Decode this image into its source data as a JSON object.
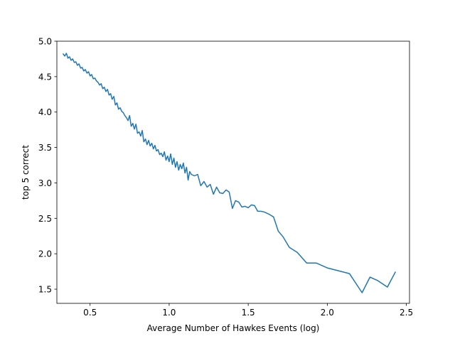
{
  "chart_data": {
    "type": "line",
    "title": "",
    "xlabel": "Average Number of Hawkes Events (log)",
    "ylabel": "top 5 correct",
    "xlim": [
      0.29,
      2.52
    ],
    "ylim": [
      1.3,
      5.0
    ],
    "x_ticks": [
      0.5,
      1.0,
      1.5,
      2.0,
      2.5
    ],
    "x_tick_labels": [
      "0.5",
      "1.0",
      "1.5",
      "2.0",
      "2.5"
    ],
    "y_ticks": [
      1.5,
      2.0,
      2.5,
      3.0,
      3.5,
      4.0,
      4.5,
      5.0
    ],
    "y_tick_labels": [
      "1.5",
      "2.0",
      "2.5",
      "3.0",
      "3.5",
      "4.0",
      "4.5",
      "5.0"
    ],
    "grid": false,
    "legend": "none",
    "series": [
      {
        "color": "#1f77b4",
        "x": [
          0.33,
          0.34,
          0.35,
          0.36,
          0.37,
          0.38,
          0.39,
          0.4,
          0.41,
          0.42,
          0.43,
          0.44,
          0.45,
          0.46,
          0.47,
          0.48,
          0.49,
          0.5,
          0.51,
          0.52,
          0.53,
          0.54,
          0.55,
          0.56,
          0.57,
          0.58,
          0.59,
          0.6,
          0.61,
          0.62,
          0.63,
          0.64,
          0.65,
          0.66,
          0.67,
          0.68,
          0.69,
          0.7,
          0.71,
          0.72,
          0.73,
          0.74,
          0.75,
          0.76,
          0.77,
          0.78,
          0.79,
          0.8,
          0.81,
          0.82,
          0.83,
          0.84,
          0.85,
          0.86,
          0.87,
          0.88,
          0.89,
          0.9,
          0.91,
          0.92,
          0.93,
          0.94,
          0.95,
          0.96,
          0.97,
          0.98,
          0.99,
          1.0,
          1.01,
          1.02,
          1.03,
          1.04,
          1.05,
          1.06,
          1.07,
          1.08,
          1.09,
          1.1,
          1.11,
          1.12,
          1.13,
          1.14,
          1.16,
          1.18,
          1.2,
          1.22,
          1.24,
          1.26,
          1.28,
          1.3,
          1.32,
          1.34,
          1.36,
          1.38,
          1.4,
          1.42,
          1.44,
          1.46,
          1.48,
          1.5,
          1.52,
          1.54,
          1.56,
          1.58,
          1.6,
          1.63,
          1.66,
          1.69,
          1.72,
          1.76,
          1.81,
          1.87,
          1.93,
          2.0,
          2.07,
          2.14,
          2.22,
          2.27,
          2.32,
          2.38,
          2.43
        ],
        "y": [
          4.82,
          4.79,
          4.83,
          4.76,
          4.78,
          4.73,
          4.75,
          4.7,
          4.71,
          4.66,
          4.68,
          4.62,
          4.63,
          4.58,
          4.6,
          4.55,
          4.57,
          4.51,
          4.53,
          4.47,
          4.48,
          4.44,
          4.42,
          4.38,
          4.4,
          4.33,
          4.35,
          4.29,
          4.32,
          4.24,
          4.26,
          4.18,
          4.22,
          4.1,
          4.13,
          4.04,
          4.06,
          4.01,
          3.99,
          3.95,
          3.92,
          3.88,
          3.95,
          3.8,
          3.84,
          3.76,
          3.83,
          3.7,
          3.72,
          3.66,
          3.74,
          3.58,
          3.62,
          3.54,
          3.6,
          3.52,
          3.56,
          3.48,
          3.53,
          3.45,
          3.47,
          3.4,
          3.42,
          3.37,
          3.44,
          3.32,
          3.38,
          3.3,
          3.41,
          3.26,
          3.35,
          3.22,
          3.3,
          3.18,
          3.26,
          3.2,
          3.28,
          3.14,
          3.22,
          3.04,
          3.16,
          3.12,
          3.1,
          3.12,
          2.96,
          3.02,
          2.94,
          2.98,
          2.84,
          2.94,
          2.86,
          2.85,
          2.9,
          2.87,
          2.64,
          2.75,
          2.73,
          2.66,
          2.67,
          2.65,
          2.69,
          2.68,
          2.6,
          2.6,
          2.59,
          2.56,
          2.52,
          2.32,
          2.24,
          2.09,
          2.02,
          1.87,
          1.87,
          1.8,
          1.76,
          1.72,
          1.45,
          1.67,
          1.62,
          1.53,
          1.74
        ]
      }
    ]
  }
}
